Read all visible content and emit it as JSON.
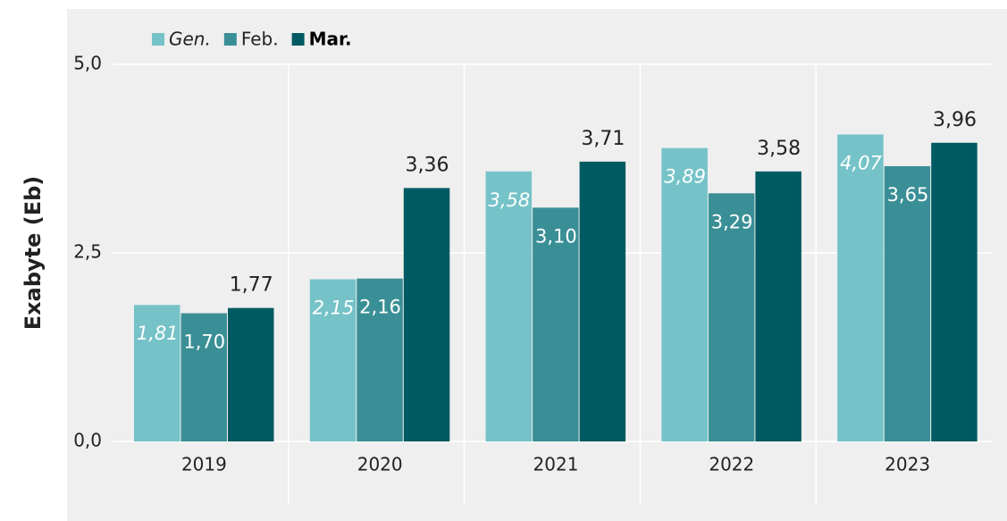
{
  "chart_data": {
    "type": "bar",
    "ylabel": "Exabyte (Eb)",
    "categories": [
      "2019",
      "2020",
      "2021",
      "2022",
      "2023"
    ],
    "series": [
      {
        "name": "Gen.",
        "color": "#75c3c8",
        "values": [
          1.81,
          2.15,
          3.58,
          3.89,
          4.07
        ],
        "value_labels": [
          "1,81",
          "2,15",
          "3,58",
          "3,89",
          "4,07"
        ]
      },
      {
        "name": "Feb.",
        "color": "#3a8f96",
        "values": [
          1.7,
          2.16,
          3.1,
          3.29,
          3.65
        ],
        "value_labels": [
          "1,70",
          "2,16",
          "3,10",
          "3,29",
          "3,65"
        ]
      },
      {
        "name": "Mar.",
        "color": "#005a62",
        "values": [
          1.77,
          3.36,
          3.71,
          3.58,
          3.96
        ],
        "value_labels": [
          "1,77",
          "3,36",
          "3,71",
          "3,58",
          "3,96"
        ]
      }
    ],
    "ylim": [
      0,
      5
    ],
    "yticks": [
      {
        "value": 0,
        "label": "0,0"
      },
      {
        "value": 2.5,
        "label": "2,5"
      },
      {
        "value": 5,
        "label": "5,0"
      }
    ],
    "grid": true,
    "legend": "top-left"
  }
}
